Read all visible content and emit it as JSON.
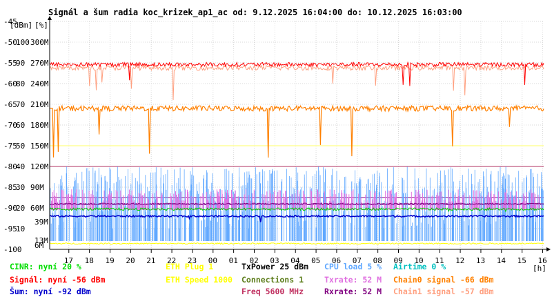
{
  "chart_data": {
    "type": "line",
    "title": "Signál a šum radia koc_krizek_ap1_ac od: 9.12.2025 16:04:00 do: 10.12.2025 16:03:00",
    "y_unit_labels": [
      "[dBm]",
      "[%]"
    ],
    "x_unit_label": "[h]",
    "x_labels": [
      "17",
      "18",
      "19",
      "20",
      "21",
      "22",
      "23",
      "00",
      "01",
      "02",
      "03",
      "04",
      "05",
      "06",
      "07",
      "08",
      "09",
      "10",
      "11",
      "12",
      "13",
      "14",
      "15",
      "16"
    ],
    "x_range_hours": [
      16.07,
      40.05
    ],
    "ylim_dbm": [
      -100,
      -45
    ],
    "dbm_ticks": [
      -45,
      -50,
      -55,
      -60,
      -65,
      -70,
      -75,
      -80,
      -85,
      -90,
      -95,
      -100
    ],
    "pct_ticks": [
      "100",
      "90",
      "80",
      "70",
      "60",
      "50",
      "40",
      "30",
      "20",
      "10"
    ],
    "rate_ticks": [
      "300M",
      "270M",
      "240M",
      "210M",
      "180M",
      "150M",
      "120M",
      "90M",
      "60M",
      "39M",
      "13M",
      "6M"
    ],
    "series": [
      {
        "name": "Signál",
        "color": "#ff0000",
        "approx_level_dbm": -55.5
      },
      {
        "name": "Chain1 signal",
        "color": "#ffa080",
        "approx_level_dbm": -56
      },
      {
        "name": "Chain0 signal",
        "color": "#ff8000",
        "approx_level_dbm": -66
      },
      {
        "name": "Šum",
        "color": "#0000cc",
        "approx_level_dbm": -92
      },
      {
        "name": "CINR",
        "color": "#00cc00",
        "approx_level_pct": 20
      },
      {
        "name": "CPU load",
        "color": "#60a8ff",
        "approx_level_pct": 5
      },
      {
        "name": "Txrate",
        "color": "#e070e0",
        "approx_level_mbps": 52
      },
      {
        "name": "Rxrate",
        "color": "#800080",
        "approx_level_mbps": 52
      },
      {
        "name": "ETH Speed",
        "color": "#ffff00",
        "approx_level_mbps": 1000
      }
    ],
    "reference_lines": [
      {
        "color": "#ffff66",
        "level_dbm": -75
      },
      {
        "color": "#b03060",
        "level_dbm": -80
      }
    ],
    "legend": [
      [
        {
          "text": "CINR: nyní 20 %",
          "color": "#00dd00"
        },
        {
          "text": "Signál: nyní -56 dBm",
          "color": "#ff0000"
        },
        {
          "text": "Šum: nyní -92 dBm",
          "color": "#0000cc"
        }
      ],
      [
        {
          "text": "ETH Plug 1",
          "color": "#ffff00"
        },
        {
          "text": "ETH Speed 1000",
          "color": "#ffff00"
        },
        {
          "text": "",
          "color": "#ffff00"
        }
      ],
      [
        {
          "text": "TxPower 25 dBm",
          "color": "#000000"
        },
        {
          "text": "Connections 1",
          "color": "#608020"
        },
        {
          "text": "Freq 5600 MHz",
          "color": "#c03060"
        }
      ],
      [
        {
          "text": "CPU load 5 %",
          "color": "#60a8ff"
        },
        {
          "text": "Txrate: 52 M",
          "color": "#e070e0"
        },
        {
          "text": "Rxrate: 52 M",
          "color": "#800080"
        }
      ],
      [
        {
          "text": "Airtime 0 %",
          "color": "#00c0c0"
        },
        {
          "text": "Chain0 signal -66 dBm",
          "color": "#ff8000"
        },
        {
          "text": "Chain1 signal -57 dBm",
          "color": "#ffa080"
        }
      ]
    ]
  }
}
